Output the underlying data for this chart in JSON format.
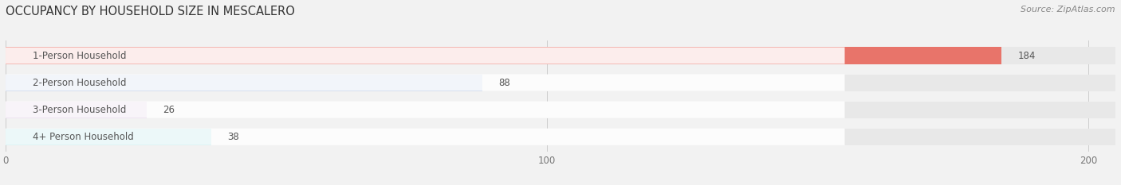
{
  "title": "OCCUPANCY BY HOUSEHOLD SIZE IN MESCALERO",
  "source": "Source: ZipAtlas.com",
  "categories": [
    "1-Person Household",
    "2-Person Household",
    "3-Person Household",
    "4+ Person Household"
  ],
  "values": [
    184,
    88,
    26,
    38
  ],
  "colors": [
    "#e8746a",
    "#9eb3d8",
    "#c9a8d4",
    "#6ecbd1"
  ],
  "xlim": [
    0,
    205
  ],
  "xticks": [
    0,
    100,
    200
  ],
  "bar_height": 0.62,
  "background_color": "#f2f2f2",
  "bar_bg_color": "#e8e8e8",
  "title_fontsize": 10.5,
  "source_fontsize": 8,
  "label_fontsize": 8.5,
  "value_fontsize": 8.5,
  "label_color": "#555555",
  "value_color": "#555555",
  "title_color": "#333333",
  "source_color": "#888888"
}
